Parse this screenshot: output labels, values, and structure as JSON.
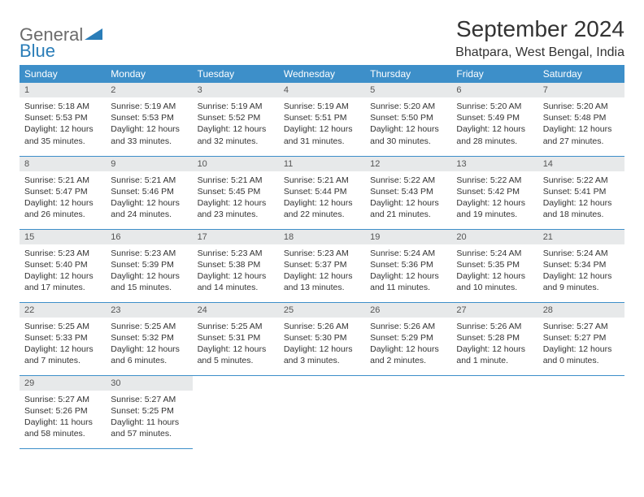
{
  "logo": {
    "textA": "General",
    "textB": "Blue",
    "accent": "#2a7db8",
    "grey": "#6b6b6b"
  },
  "title": "September 2024",
  "location": "Bhatpara, West Bengal, India",
  "colors": {
    "header_bg": "#3d8fc9",
    "header_fg": "#ffffff",
    "daynum_bg": "#e7e9ea",
    "daynum_fg": "#555555",
    "rule": "#3d8fc9",
    "text": "#333333",
    "page_bg": "#ffffff"
  },
  "dow": [
    "Sunday",
    "Monday",
    "Tuesday",
    "Wednesday",
    "Thursday",
    "Friday",
    "Saturday"
  ],
  "weeks": [
    [
      {
        "day": 1,
        "sunrise": "Sunrise: 5:18 AM",
        "sunset": "Sunset: 5:53 PM",
        "daylight": "Daylight: 12 hours and 35 minutes."
      },
      {
        "day": 2,
        "sunrise": "Sunrise: 5:19 AM",
        "sunset": "Sunset: 5:53 PM",
        "daylight": "Daylight: 12 hours and 33 minutes."
      },
      {
        "day": 3,
        "sunrise": "Sunrise: 5:19 AM",
        "sunset": "Sunset: 5:52 PM",
        "daylight": "Daylight: 12 hours and 32 minutes."
      },
      {
        "day": 4,
        "sunrise": "Sunrise: 5:19 AM",
        "sunset": "Sunset: 5:51 PM",
        "daylight": "Daylight: 12 hours and 31 minutes."
      },
      {
        "day": 5,
        "sunrise": "Sunrise: 5:20 AM",
        "sunset": "Sunset: 5:50 PM",
        "daylight": "Daylight: 12 hours and 30 minutes."
      },
      {
        "day": 6,
        "sunrise": "Sunrise: 5:20 AM",
        "sunset": "Sunset: 5:49 PM",
        "daylight": "Daylight: 12 hours and 28 minutes."
      },
      {
        "day": 7,
        "sunrise": "Sunrise: 5:20 AM",
        "sunset": "Sunset: 5:48 PM",
        "daylight": "Daylight: 12 hours and 27 minutes."
      }
    ],
    [
      {
        "day": 8,
        "sunrise": "Sunrise: 5:21 AM",
        "sunset": "Sunset: 5:47 PM",
        "daylight": "Daylight: 12 hours and 26 minutes."
      },
      {
        "day": 9,
        "sunrise": "Sunrise: 5:21 AM",
        "sunset": "Sunset: 5:46 PM",
        "daylight": "Daylight: 12 hours and 24 minutes."
      },
      {
        "day": 10,
        "sunrise": "Sunrise: 5:21 AM",
        "sunset": "Sunset: 5:45 PM",
        "daylight": "Daylight: 12 hours and 23 minutes."
      },
      {
        "day": 11,
        "sunrise": "Sunrise: 5:21 AM",
        "sunset": "Sunset: 5:44 PM",
        "daylight": "Daylight: 12 hours and 22 minutes."
      },
      {
        "day": 12,
        "sunrise": "Sunrise: 5:22 AM",
        "sunset": "Sunset: 5:43 PM",
        "daylight": "Daylight: 12 hours and 21 minutes."
      },
      {
        "day": 13,
        "sunrise": "Sunrise: 5:22 AM",
        "sunset": "Sunset: 5:42 PM",
        "daylight": "Daylight: 12 hours and 19 minutes."
      },
      {
        "day": 14,
        "sunrise": "Sunrise: 5:22 AM",
        "sunset": "Sunset: 5:41 PM",
        "daylight": "Daylight: 12 hours and 18 minutes."
      }
    ],
    [
      {
        "day": 15,
        "sunrise": "Sunrise: 5:23 AM",
        "sunset": "Sunset: 5:40 PM",
        "daylight": "Daylight: 12 hours and 17 minutes."
      },
      {
        "day": 16,
        "sunrise": "Sunrise: 5:23 AM",
        "sunset": "Sunset: 5:39 PM",
        "daylight": "Daylight: 12 hours and 15 minutes."
      },
      {
        "day": 17,
        "sunrise": "Sunrise: 5:23 AM",
        "sunset": "Sunset: 5:38 PM",
        "daylight": "Daylight: 12 hours and 14 minutes."
      },
      {
        "day": 18,
        "sunrise": "Sunrise: 5:23 AM",
        "sunset": "Sunset: 5:37 PM",
        "daylight": "Daylight: 12 hours and 13 minutes."
      },
      {
        "day": 19,
        "sunrise": "Sunrise: 5:24 AM",
        "sunset": "Sunset: 5:36 PM",
        "daylight": "Daylight: 12 hours and 11 minutes."
      },
      {
        "day": 20,
        "sunrise": "Sunrise: 5:24 AM",
        "sunset": "Sunset: 5:35 PM",
        "daylight": "Daylight: 12 hours and 10 minutes."
      },
      {
        "day": 21,
        "sunrise": "Sunrise: 5:24 AM",
        "sunset": "Sunset: 5:34 PM",
        "daylight": "Daylight: 12 hours and 9 minutes."
      }
    ],
    [
      {
        "day": 22,
        "sunrise": "Sunrise: 5:25 AM",
        "sunset": "Sunset: 5:33 PM",
        "daylight": "Daylight: 12 hours and 7 minutes."
      },
      {
        "day": 23,
        "sunrise": "Sunrise: 5:25 AM",
        "sunset": "Sunset: 5:32 PM",
        "daylight": "Daylight: 12 hours and 6 minutes."
      },
      {
        "day": 24,
        "sunrise": "Sunrise: 5:25 AM",
        "sunset": "Sunset: 5:31 PM",
        "daylight": "Daylight: 12 hours and 5 minutes."
      },
      {
        "day": 25,
        "sunrise": "Sunrise: 5:26 AM",
        "sunset": "Sunset: 5:30 PM",
        "daylight": "Daylight: 12 hours and 3 minutes."
      },
      {
        "day": 26,
        "sunrise": "Sunrise: 5:26 AM",
        "sunset": "Sunset: 5:29 PM",
        "daylight": "Daylight: 12 hours and 2 minutes."
      },
      {
        "day": 27,
        "sunrise": "Sunrise: 5:26 AM",
        "sunset": "Sunset: 5:28 PM",
        "daylight": "Daylight: 12 hours and 1 minute."
      },
      {
        "day": 28,
        "sunrise": "Sunrise: 5:27 AM",
        "sunset": "Sunset: 5:27 PM",
        "daylight": "Daylight: 12 hours and 0 minutes."
      }
    ],
    [
      {
        "day": 29,
        "sunrise": "Sunrise: 5:27 AM",
        "sunset": "Sunset: 5:26 PM",
        "daylight": "Daylight: 11 hours and 58 minutes."
      },
      {
        "day": 30,
        "sunrise": "Sunrise: 5:27 AM",
        "sunset": "Sunset: 5:25 PM",
        "daylight": "Daylight: 11 hours and 57 minutes."
      },
      null,
      null,
      null,
      null,
      null
    ]
  ]
}
